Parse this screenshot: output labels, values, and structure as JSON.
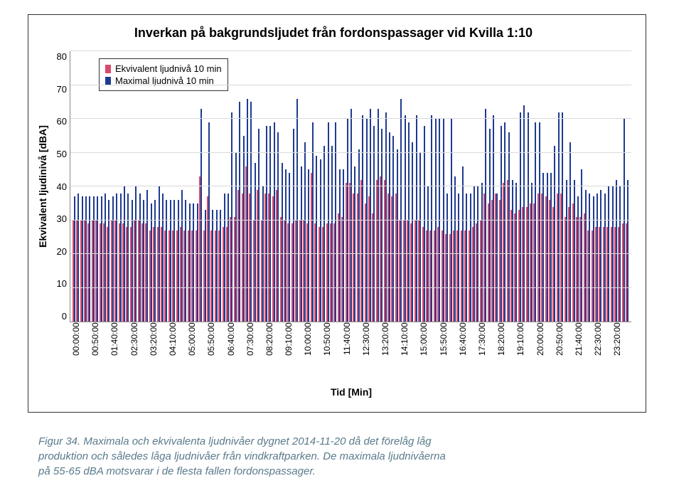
{
  "chart": {
    "type": "bar",
    "title": "Inverkan på bakgrundsljudet från fordonspassager vid Kvilla 1:10",
    "title_fontsize": 18,
    "ylabel": "Ekvivalent ljudinivå [dBA]",
    "xlabel": "Tid [Min]",
    "label_fontsize": 14,
    "ylim": [
      0,
      80
    ],
    "ytick_step": 10,
    "yticks": [
      0,
      10,
      20,
      30,
      40,
      50,
      60,
      70,
      80
    ],
    "grid_color": "#d9d9d9",
    "background_color": "#ffffff",
    "border_color": "#333333",
    "axis_color": "#888888",
    "series": [
      {
        "name": "Ekvivalent ljudnivå 10 min",
        "color": "#d94a6a"
      },
      {
        "name": "Maximal ljudnivå 10 min",
        "color": "#1f3b8f"
      }
    ],
    "x_labels": [
      "00:00:00",
      "00:50:00",
      "01:40:00",
      "02:30:00",
      "03:20:00",
      "04:10:00",
      "05:00:00",
      "05:50:00",
      "06:40:00",
      "07:30:00",
      "08:20:00",
      "09:10:00",
      "10:00:00",
      "10:50:00",
      "11:40:00",
      "12:30:00",
      "13:20:00",
      "14:10:00",
      "15:00:00",
      "15:50:00",
      "16:40:00",
      "17:30:00",
      "18:20:00",
      "19:10:00",
      "20:00:00",
      "20:50:00",
      "21:40:00",
      "22:30:00",
      "23:20:00"
    ],
    "x_label_step": 5,
    "ekvivalent": [
      30,
      30,
      30,
      30,
      29,
      30,
      30,
      29,
      29,
      28,
      30,
      30,
      29,
      29,
      28,
      28,
      30,
      30,
      29,
      29,
      27,
      28,
      28,
      28,
      27,
      27,
      27,
      27,
      28,
      27,
      27,
      27,
      27,
      43,
      27,
      37,
      27,
      27,
      27,
      28,
      28,
      31,
      31,
      39,
      38,
      46,
      38,
      30,
      39,
      30,
      38,
      38,
      37,
      39,
      31,
      30,
      29,
      29,
      30,
      30,
      30,
      29,
      44,
      29,
      28,
      28,
      29,
      29,
      29,
      32,
      31,
      41,
      41,
      38,
      38,
      42,
      35,
      37,
      32,
      42,
      43,
      42,
      38,
      37,
      38,
      30,
      30,
      30,
      29,
      30,
      30,
      28,
      27,
      27,
      27,
      28,
      27,
      26,
      26,
      27,
      27,
      27,
      27,
      27,
      28,
      29,
      30,
      38,
      35,
      36,
      38,
      36,
      41,
      42,
      33,
      32,
      33,
      34,
      34,
      35,
      35,
      38,
      38,
      37,
      36,
      34,
      38,
      38,
      31,
      34,
      35,
      31,
      31,
      32,
      27,
      27,
      28,
      28,
      28,
      28,
      28,
      28,
      28,
      29,
      29
    ],
    "maximal": [
      37,
      38,
      37,
      37,
      37,
      37,
      37,
      37,
      38,
      36,
      37,
      38,
      38,
      40,
      38,
      36,
      40,
      38,
      36,
      39,
      35,
      36,
      40,
      38,
      36,
      36,
      36,
      36,
      39,
      36,
      35,
      35,
      35,
      63,
      33,
      59,
      33,
      33,
      33,
      38,
      38,
      62,
      50,
      65,
      55,
      66,
      65,
      47,
      57,
      40,
      58,
      58,
      59,
      56,
      47,
      45,
      44,
      57,
      66,
      46,
      53,
      45,
      59,
      49,
      48,
      52,
      59,
      52,
      59,
      45,
      45,
      60,
      63,
      46,
      51,
      61,
      60,
      63,
      58,
      63,
      57,
      62,
      56,
      55,
      51,
      66,
      61,
      59,
      53,
      61,
      50,
      58,
      40,
      61,
      60,
      60,
      60,
      38,
      60,
      43,
      38,
      46,
      38,
      38,
      40,
      40,
      41,
      63,
      57,
      61,
      38,
      58,
      59,
      56,
      42,
      41,
      62,
      64,
      62,
      41,
      59,
      59,
      44,
      44,
      44,
      52,
      62,
      62,
      42,
      53,
      42,
      37,
      45,
      39,
      38,
      37,
      38,
      39,
      38,
      40,
      40,
      42,
      40,
      60,
      42
    ]
  },
  "caption": {
    "line1": "Figur 34. Maximala och ekvivalenta ljudnivåer dygnet 2014-11-20 då det förelåg låg",
    "line2": "produktion och således låga ljudnivåer från vindkraftparken. De maximala ljudnivåerna",
    "line3": "på 55-65 dBA motsvarar i de flesta fallen fordonspassager.",
    "color": "#5a7a8c",
    "fontsize": 15
  }
}
